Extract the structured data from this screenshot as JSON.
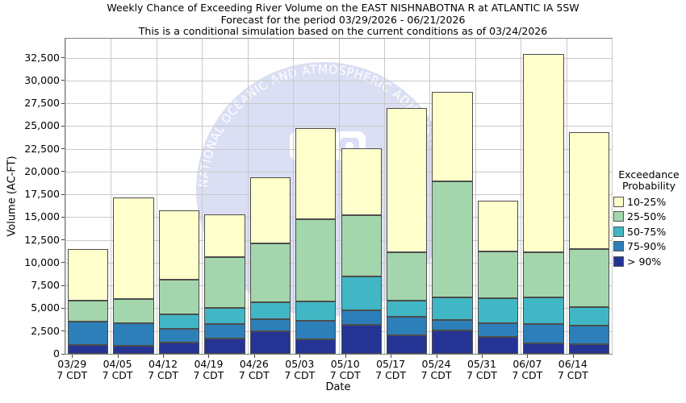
{
  "title": {
    "line1": "Weekly Chance of Exceeding River Volume on the EAST NISHNABOTNA R at ATLANTIC IA 5SW",
    "line2": "Forecast for the period 03/29/2026 - 06/21/2026",
    "line3": "This is a conditional simulation based on the current conditions as of 03/24/2026"
  },
  "axes": {
    "y_label": "Volume (AC-FT)",
    "x_label": "Date",
    "y_ticks": [
      "0",
      "2,500",
      "5,000",
      "7,500",
      "10,000",
      "12,500",
      "15,000",
      "17,500",
      "20,000",
      "22,500",
      "25,000",
      "27,500",
      "30,000",
      "32,500"
    ],
    "x_tick_sublabel": "7 CDT"
  },
  "legend": {
    "title_line1": "Exceedance",
    "title_line2": "Probability",
    "entries": [
      {
        "label": "10-25%",
        "color": "#ffffcc"
      },
      {
        "label": "25-50%",
        "color": "#a3d6ac"
      },
      {
        "label": "50-75%",
        "color": "#41b6c4"
      },
      {
        "label": "75-90%",
        "color": "#2c7fb8"
      },
      {
        "label": "> 90%",
        "color": "#253494"
      }
    ]
  },
  "watermark": {
    "arc_text": "NATIONAL OCEANIC AND ATMOSPHERIC ADMINISTRATION",
    "circle_color": "#dbdff4"
  },
  "colors": {
    "grid": "#c9c9c9",
    "plot_border": "#7f7f7f",
    "bar_edge": "#4d4d4d"
  },
  "chart_data": {
    "type": "bar",
    "stacked": true,
    "title": "Weekly Chance of Exceeding River Volume on the EAST NISHNABOTNA R at ATLANTIC IA 5SW",
    "subtitle1": "Forecast for the period 03/29/2026 - 06/21/2026",
    "subtitle2": "This is a conditional simulation based on the current conditions as of 03/24/2026",
    "xlabel": "Date",
    "ylabel": "Volume (AC-FT)",
    "units": "AC-FT",
    "ylim": [
      0,
      34600
    ],
    "ytick_step": 2500,
    "grid": true,
    "legend_position": "right",
    "legend_title": "Exceedance Probability",
    "categories": [
      "03/29",
      "04/05",
      "04/12",
      "04/19",
      "04/26",
      "05/03",
      "05/10",
      "05/17",
      "05/24",
      "05/31",
      "06/07",
      "06/14"
    ],
    "category_sublabel": "7 CDT",
    "series": [
      {
        "name": "> 90%",
        "color": "#253494",
        "values": [
          1000,
          870,
          1200,
          1660,
          2450,
          1570,
          3190,
          2010,
          2600,
          1870,
          1130,
          1040
        ]
      },
      {
        "name": "75-90%",
        "color": "#2c7fb8",
        "values": [
          2550,
          2530,
          1550,
          1590,
          1330,
          2060,
          1620,
          2070,
          1100,
          1530,
          2150,
          2060
        ]
      },
      {
        "name": "50-75%",
        "color": "#41b6c4",
        "values": [
          0,
          0,
          1550,
          1760,
          1920,
          2150,
          3730,
          1760,
          2490,
          2730,
          2910,
          2060
        ]
      },
      {
        "name": "25-50%",
        "color": "#a3d6ac",
        "values": [
          2300,
          2600,
          3830,
          5620,
          6400,
          9020,
          6700,
          5340,
          12760,
          5140,
          4940,
          6320
        ]
      },
      {
        "name": "10-25%",
        "color": "#ffffcc",
        "values": [
          5650,
          11200,
          7620,
          4720,
          7300,
          10000,
          7360,
          15820,
          9850,
          5510,
          21810,
          12880
        ]
      }
    ],
    "stack_totals": [
      11500,
      17200,
      15750,
      15350,
      19400,
      24800,
      22600,
      27000,
      28800,
      16780,
      32940,
      24360
    ]
  }
}
